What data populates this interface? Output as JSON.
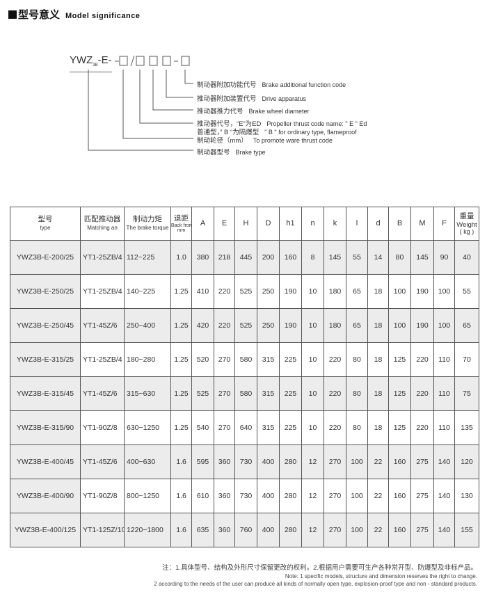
{
  "title": {
    "cn": "型号意义",
    "en": "Model significance"
  },
  "diagram": {
    "code_prefix": "YWZ",
    "code_sub": "3B",
    "code_suffix": "-E-",
    "separators": [
      "/",
      "-"
    ],
    "labels": [
      {
        "cn": "制动器附加功能代号",
        "en": "Brake additional function code"
      },
      {
        "cn": "推动器附加装置代号",
        "en": "Drive apparatus"
      },
      {
        "cn": "推动器推力代号",
        "en": "Brake wheel diameter"
      },
      {
        "cn": "推动器代号，“E”为ED",
        "en": "Propeller thrust code name: \" E \" Ed"
      },
      {
        "cn": "普通型，” B “为隔爆型",
        "en": "\" B \" for ordinary type, flameproof"
      },
      {
        "cn": "制动轮径（mm）",
        "en": "To promote ware thrust code"
      },
      {
        "cn": "制动器型号",
        "en": "Brake type"
      }
    ]
  },
  "table": {
    "headers": [
      {
        "cn": "型号",
        "en": "type"
      },
      {
        "cn": "匹配推动器",
        "en": "Matching an"
      },
      {
        "cn": "制动力矩",
        "en": "The brake torque"
      },
      {
        "cn": "退距",
        "en": "Back from the",
        "unit": "mm"
      },
      {
        "en": "A"
      },
      {
        "en": "E"
      },
      {
        "en": "H"
      },
      {
        "en": "D"
      },
      {
        "en": "h1"
      },
      {
        "en": "n"
      },
      {
        "en": "k"
      },
      {
        "en": "l"
      },
      {
        "en": "d"
      },
      {
        "en": "B"
      },
      {
        "en": "M"
      },
      {
        "en": "F"
      },
      {
        "cn": "重量",
        "en": "Weight",
        "unit": "( kg )"
      }
    ],
    "rows": [
      [
        "YWZ3B-E-200/25",
        "YT1-25ZB/4",
        "112~225",
        "1.0",
        "380",
        "218",
        "445",
        "200",
        "160",
        "8",
        "145",
        "55",
        "14",
        "80",
        "145",
        "90",
        "40"
      ],
      [
        "YWZ3B-E-250/25",
        "YT1-25ZB/4",
        "140~225",
        "1.25",
        "410",
        "220",
        "525",
        "250",
        "190",
        "10",
        "180",
        "65",
        "18",
        "100",
        "190",
        "100",
        "55"
      ],
      [
        "YWZ3B-E-250/45",
        "YT1-45Z/6",
        "250~400",
        "1.25",
        "420",
        "220",
        "525",
        "250",
        "190",
        "10",
        "180",
        "65",
        "18",
        "100",
        "190",
        "100",
        "65"
      ],
      [
        "YWZ3B-E-315/25",
        "YT1-25ZB/4",
        "180~280",
        "1.25",
        "520",
        "270",
        "580",
        "315",
        "225",
        "10",
        "220",
        "80",
        "18",
        "125",
        "220",
        "110",
        "70"
      ],
      [
        "YWZ3B-E-315/45",
        "YT1-45Z/6",
        "315~630",
        "1.25",
        "525",
        "270",
        "580",
        "315",
        "225",
        "10",
        "220",
        "80",
        "18",
        "125",
        "220",
        "110",
        "75"
      ],
      [
        "YWZ3B-E-315/90",
        "YT1-90Z/8",
        "630~1250",
        "1.25",
        "540",
        "270",
        "640",
        "315",
        "225",
        "10",
        "220",
        "80",
        "18",
        "125",
        "220",
        "110",
        "135"
      ],
      [
        "YWZ3B-E-400/45",
        "YT1-45Z/6",
        "400~630",
        "1.6",
        "595",
        "360",
        "730",
        "400",
        "280",
        "12",
        "270",
        "100",
        "22",
        "160",
        "275",
        "140",
        "120"
      ],
      [
        "YWZ3B-E-400/90",
        "YT1-90Z/8",
        "800~1250",
        "1.6",
        "610",
        "360",
        "730",
        "400",
        "280",
        "12",
        "270",
        "100",
        "22",
        "160",
        "275",
        "140",
        "130"
      ],
      [
        "YWZ3B-E-400/125",
        "YT1-125Z/10",
        "1220~1800",
        "1.6",
        "635",
        "360",
        "760",
        "400",
        "280",
        "12",
        "270",
        "100",
        "22",
        "160",
        "275",
        "140",
        "155"
      ]
    ]
  },
  "notes": {
    "cn": "注：1.具体型号、结构及外形尺寸保留更改的权利。2.根据用户需要可生产各种常开型、防爆型及非标产品。",
    "en1": "Note: 1 specific models, structure and dimension reserves the right to change.",
    "en2": "2 according to the needs of the user can produce all kinds of normally open type, explosion-proof type and non - standard products."
  }
}
